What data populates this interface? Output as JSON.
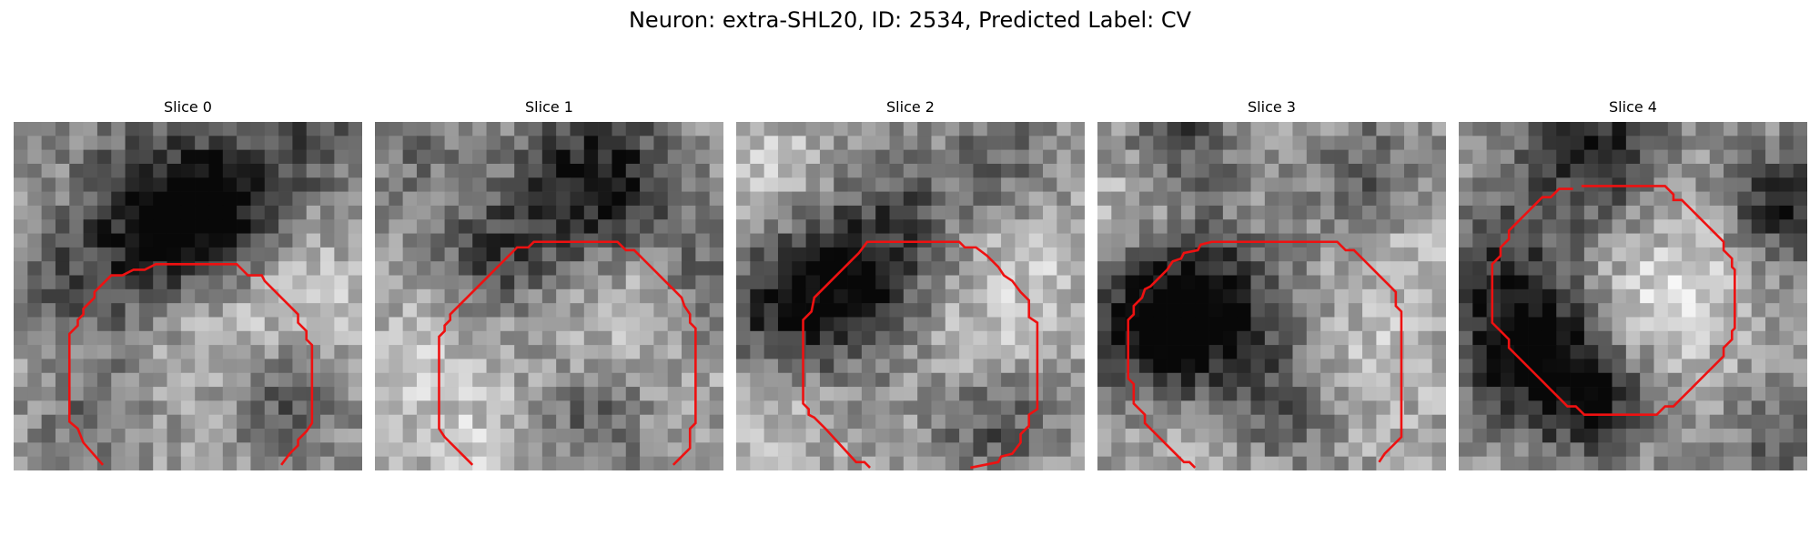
{
  "figure": {
    "title": "Neuron: extra-SHL20, ID: 2534, Predicted Label: CV",
    "outline_color": "#ee1111",
    "colormap": "gray",
    "grid_size": 25,
    "panels": [
      {
        "title": "Slice 0",
        "seed": 11,
        "dark_spots": [
          [
            9.5,
            7.5,
            5,
            0.95
          ],
          [
            14,
            5.5,
            3,
            0.7
          ],
          [
            19,
            20,
            3,
            0.5
          ],
          [
            5,
            21,
            3,
            0.35
          ],
          [
            20.5,
            0.5,
            3,
            0.5
          ],
          [
            2,
            10,
            3,
            0.25
          ]
        ],
        "bright_spots": [
          [
            14,
            14,
            4,
            0.9
          ],
          [
            3.5,
            6.5,
            3,
            0.45
          ],
          [
            22,
            11.5,
            3,
            0.35
          ]
        ]
      },
      {
        "title": "Slice 1",
        "seed": 23,
        "dark_spots": [
          [
            15.5,
            4,
            4,
            0.95
          ],
          [
            8,
            9,
            3,
            0.55
          ],
          [
            24,
            11,
            3,
            0.45
          ],
          [
            15,
            21,
            3,
            0.4
          ],
          [
            2,
            1.5,
            3,
            0.3
          ]
        ],
        "bright_spots": [
          [
            18,
            12.5,
            4,
            0.55
          ],
          [
            3,
            17,
            4,
            0.5
          ],
          [
            8,
            23,
            3,
            0.45
          ]
        ]
      },
      {
        "title": "Slice 2",
        "seed": 37,
        "dark_spots": [
          [
            7.5,
            11,
            4,
            1.0
          ],
          [
            2,
            13,
            3,
            0.5
          ],
          [
            18,
            21,
            3,
            0.55
          ],
          [
            19,
            2,
            3,
            0.35
          ],
          [
            12,
            5,
            3,
            0.3
          ]
        ],
        "bright_spots": [
          [
            17,
            15.5,
            4,
            0.55
          ],
          [
            2.5,
            3.5,
            3,
            0.55
          ],
          [
            21,
            9,
            3,
            0.4
          ],
          [
            3,
            21,
            3,
            0.4
          ]
        ]
      },
      {
        "title": "Slice 3",
        "seed": 41,
        "dark_spots": [
          [
            7,
            13,
            4,
            1.1
          ],
          [
            2.5,
            14.5,
            3,
            0.6
          ],
          [
            5.5,
            0.5,
            3,
            0.55
          ],
          [
            19,
            3.5,
            3,
            0.45
          ],
          [
            13,
            20,
            3,
            0.5
          ]
        ],
        "bright_spots": [
          [
            18,
            17,
            4,
            0.45
          ],
          [
            2,
            5,
            3,
            0.45
          ],
          [
            22,
            9,
            3,
            0.4
          ],
          [
            8,
            23,
            3,
            0.35
          ]
        ]
      },
      {
        "title": "Slice 4",
        "seed": 53,
        "dark_spots": [
          [
            4.5,
            15,
            4,
            1.1
          ],
          [
            9,
            19.5,
            3,
            0.7
          ],
          [
            9.5,
            1.5,
            4,
            0.8
          ],
          [
            22.5,
            5.5,
            3,
            0.75
          ],
          [
            2,
            8,
            3,
            0.35
          ],
          [
            22,
            23,
            3,
            0.35
          ]
        ],
        "bright_spots": [
          [
            12.5,
            12.5,
            4,
            0.8
          ],
          [
            18,
            10,
            3,
            0.45
          ],
          [
            14,
            3,
            3,
            0.35
          ]
        ]
      }
    ]
  }
}
